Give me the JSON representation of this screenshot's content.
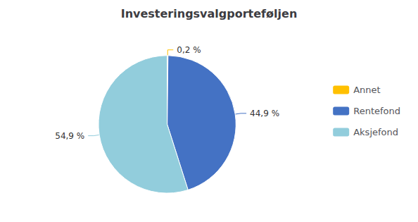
{
  "chart_data": {
    "type": "pie",
    "title": "Investeringsvalgporteføljen",
    "categories": [
      "Annet",
      "Rentefond",
      "Aksjefond"
    ],
    "values": [
      0.2,
      44.9,
      54.9
    ],
    "value_labels": [
      "0,2 %",
      "44,9 %",
      "54,9 %"
    ],
    "data_labels": true,
    "colors": [
      "#FFC000",
      "#4472C4",
      "#92CDDC"
    ],
    "legend": "right"
  }
}
